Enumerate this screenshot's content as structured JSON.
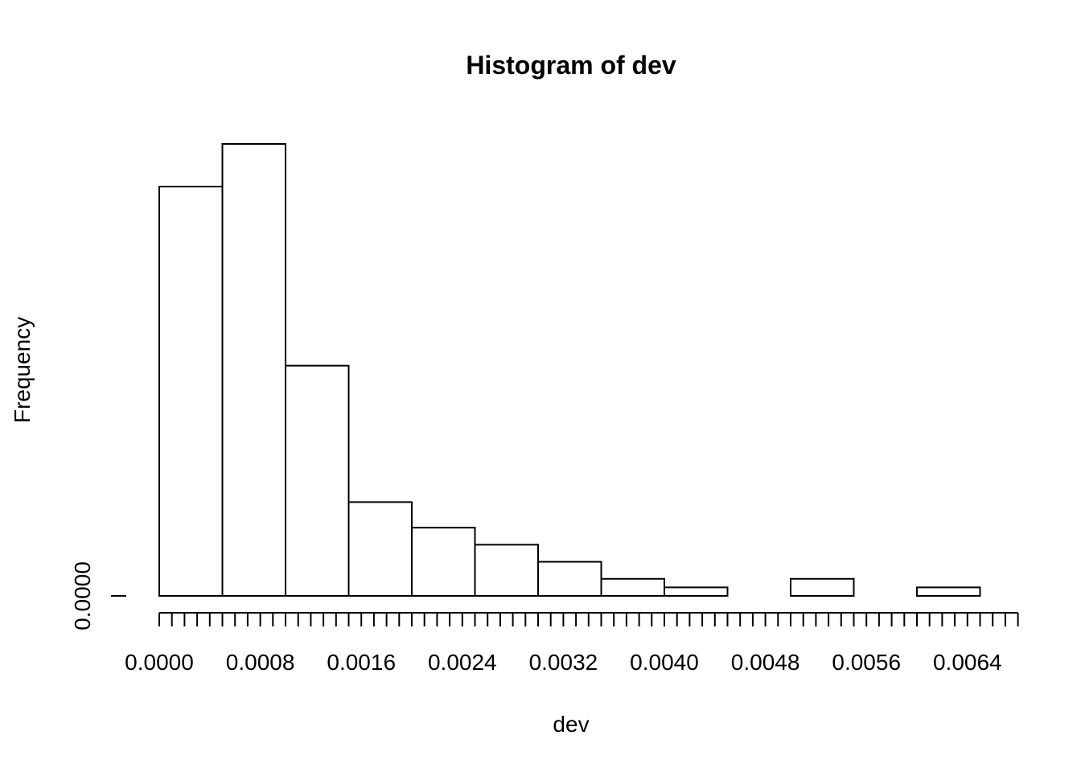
{
  "chart_data": {
    "type": "bar",
    "title": "Histogram of dev",
    "xlabel": "dev",
    "ylabel": "Frequency",
    "bin_edges": [
      0.0,
      0.0005,
      0.001,
      0.0015,
      0.002,
      0.0025,
      0.003,
      0.0035,
      0.004,
      0.0045,
      0.005,
      0.0055,
      0.006,
      0.0065
    ],
    "values": [
      48,
      53,
      27,
      11,
      8,
      6,
      4,
      2,
      1,
      0,
      2,
      0,
      1
    ],
    "xlim": [
      0.0,
      0.0068
    ],
    "ylim": [
      0,
      53
    ],
    "x_tick_labels": [
      "0.0000",
      "0.0008",
      "0.0016",
      "0.0024",
      "0.0032",
      "0.0040",
      "0.0048",
      "0.0056",
      "0.0064"
    ],
    "x_minor_tick_step": 0.0001,
    "y_tick_labels": [
      "0.0000"
    ],
    "grid": false
  },
  "colors": {
    "background": "#ffffff",
    "bar_fill": "#ffffff",
    "stroke": "#000000"
  }
}
